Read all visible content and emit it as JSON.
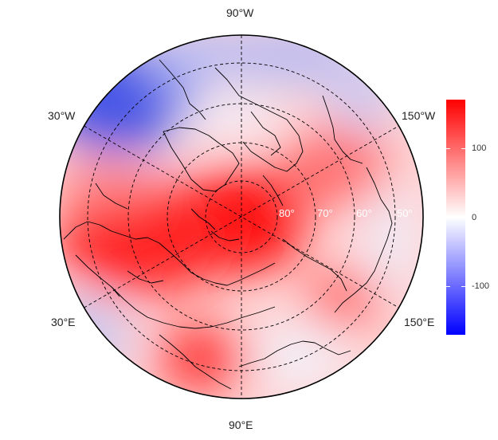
{
  "map": {
    "projection": "north-polar-stereographic",
    "color_scale": {
      "low": "#0000ff",
      "mid": "#ffffff",
      "high": "#ff0000",
      "range": [
        -170,
        170
      ]
    },
    "anomaly_regions": [
      {
        "name": "arctic-core",
        "sign": "positive",
        "strength": 1.0
      },
      {
        "name": "west-siberia-ural",
        "sign": "positive",
        "strength": 0.95
      },
      {
        "name": "central-asia",
        "sign": "positive",
        "strength": 0.85
      },
      {
        "name": "northeast-canada-labrador",
        "sign": "negative",
        "strength": 0.9
      },
      {
        "name": "north-pacific",
        "sign": "negative",
        "strength": 0.5
      },
      {
        "name": "east-siberia",
        "sign": "positive",
        "strength": 0.6
      }
    ],
    "longitude_labels": [
      {
        "key": "top",
        "text": "90°W"
      },
      {
        "key": "upper-left",
        "text": "30°W"
      },
      {
        "key": "upper-right",
        "text": "150°W"
      },
      {
        "key": "lower-left",
        "text": "30°E"
      },
      {
        "key": "lower-right",
        "text": "150°E"
      },
      {
        "key": "bottom",
        "text": "90°E"
      }
    ],
    "latitude_labels": [
      "80°",
      "70°",
      "60°",
      "50°"
    ]
  },
  "colorbar": {
    "ticks": [
      {
        "value": 100,
        "label": "100"
      },
      {
        "value": 0,
        "label": "0"
      },
      {
        "value": -100,
        "label": "-100"
      }
    ],
    "range": [
      -170,
      170
    ]
  }
}
